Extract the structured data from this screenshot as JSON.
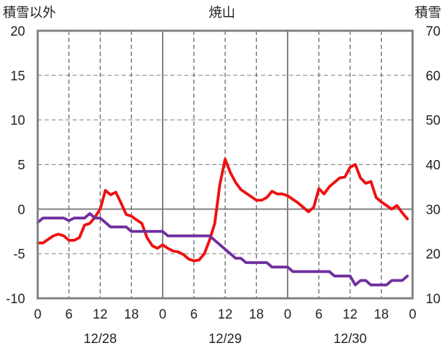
{
  "chart_data": {
    "type": "line",
    "title": "焼山",
    "ylabel_left": "積雪以外",
    "ylabel_right": "積雪",
    "ylim_left": [
      -10,
      20
    ],
    "ylim_right": [
      10,
      70
    ],
    "y_ticks_left": [
      "20",
      "15",
      "10",
      "5",
      "0",
      "-5",
      "-10"
    ],
    "y_ticks_right": [
      "70",
      "60",
      "50",
      "40",
      "30",
      "20",
      "10"
    ],
    "x_range_hours": [
      0,
      72
    ],
    "x_ticks": [
      "0",
      "6",
      "12",
      "18",
      "0",
      "6",
      "12",
      "18",
      "0",
      "6",
      "12",
      "18",
      "0"
    ],
    "date_labels": [
      "12/28",
      "12/29",
      "12/30"
    ],
    "grid": true,
    "series": [
      {
        "axis": "left",
        "color": "#ee1111",
        "points": [
          [
            0,
            -3.8
          ],
          [
            1,
            -3.8
          ],
          [
            2,
            -3.4
          ],
          [
            3,
            -3.0
          ],
          [
            4,
            -2.8
          ],
          [
            5,
            -3.0
          ],
          [
            6,
            -3.5
          ],
          [
            7,
            -3.5
          ],
          [
            8,
            -3.2
          ],
          [
            9,
            -1.8
          ],
          [
            10,
            -1.6
          ],
          [
            11,
            -0.9
          ],
          [
            12,
            0.0
          ],
          [
            13,
            2.1
          ],
          [
            14,
            1.6
          ],
          [
            15,
            1.9
          ],
          [
            16,
            0.7
          ],
          [
            17,
            -0.6
          ],
          [
            18,
            -0.8
          ],
          [
            19,
            -1.2
          ],
          [
            20,
            -1.6
          ],
          [
            21,
            -3.2
          ],
          [
            22,
            -4.1
          ],
          [
            23,
            -4.4
          ],
          [
            24,
            -4.0
          ],
          [
            25,
            -4.4
          ],
          [
            26,
            -4.7
          ],
          [
            27,
            -4.8
          ],
          [
            28,
            -5.1
          ],
          [
            29,
            -5.6
          ],
          [
            30,
            -5.8
          ],
          [
            31,
            -5.7
          ],
          [
            32,
            -5.0
          ],
          [
            33,
            -3.5
          ],
          [
            34,
            -1.6
          ],
          [
            35,
            2.8
          ],
          [
            36,
            5.6
          ],
          [
            37,
            4.1
          ],
          [
            38,
            3.0
          ],
          [
            39,
            2.2
          ],
          [
            40,
            1.8
          ],
          [
            41,
            1.4
          ],
          [
            42,
            1.0
          ],
          [
            43,
            1.0
          ],
          [
            44,
            1.3
          ],
          [
            45,
            2.0
          ],
          [
            46,
            1.7
          ],
          [
            47,
            1.7
          ],
          [
            48,
            1.5
          ],
          [
            49,
            1.1
          ],
          [
            50,
            0.7
          ],
          [
            51,
            0.2
          ],
          [
            52,
            -0.3
          ],
          [
            53,
            0.2
          ],
          [
            54,
            2.3
          ],
          [
            55,
            1.7
          ],
          [
            56,
            2.5
          ],
          [
            57,
            3.0
          ],
          [
            58,
            3.5
          ],
          [
            59,
            3.6
          ],
          [
            60,
            4.7
          ],
          [
            61,
            5.0
          ],
          [
            62,
            3.5
          ],
          [
            63,
            2.9
          ],
          [
            64,
            3.1
          ],
          [
            65,
            1.3
          ],
          [
            66,
            0.8
          ],
          [
            67,
            0.4
          ],
          [
            68,
            0.0
          ],
          [
            69,
            0.4
          ],
          [
            70,
            -0.4
          ],
          [
            71,
            -1.1
          ]
        ]
      },
      {
        "axis": "right",
        "color": "#7030a0",
        "points": [
          [
            0,
            27.0
          ],
          [
            1,
            28.0
          ],
          [
            2,
            28.0
          ],
          [
            3,
            28.0
          ],
          [
            4,
            28.0
          ],
          [
            5,
            28.0
          ],
          [
            6,
            27.4
          ],
          [
            7,
            28.0
          ],
          [
            8,
            28.0
          ],
          [
            9,
            28.0
          ],
          [
            10,
            29.0
          ],
          [
            11,
            28.0
          ],
          [
            12,
            28.0
          ],
          [
            13,
            27.0
          ],
          [
            14,
            26.0
          ],
          [
            15,
            26.0
          ],
          [
            16,
            26.0
          ],
          [
            17,
            26.0
          ],
          [
            18,
            25.0
          ],
          [
            19,
            25.0
          ],
          [
            20,
            25.0
          ],
          [
            21,
            25.0
          ],
          [
            22,
            25.0
          ],
          [
            23,
            25.0
          ],
          [
            24,
            25.0
          ],
          [
            25,
            24.0
          ],
          [
            26,
            24.0
          ],
          [
            27,
            24.0
          ],
          [
            28,
            24.0
          ],
          [
            29,
            24.0
          ],
          [
            30,
            24.0
          ],
          [
            31,
            24.0
          ],
          [
            32,
            24.0
          ],
          [
            33,
            24.0
          ],
          [
            34,
            23.0
          ],
          [
            35,
            22.0
          ],
          [
            36,
            21.0
          ],
          [
            37,
            20.0
          ],
          [
            38,
            19.0
          ],
          [
            39,
            19.0
          ],
          [
            40,
            18.0
          ],
          [
            41,
            18.0
          ],
          [
            42,
            18.0
          ],
          [
            43,
            18.0
          ],
          [
            44,
            18.0
          ],
          [
            45,
            17.0
          ],
          [
            46,
            17.0
          ],
          [
            47,
            17.0
          ],
          [
            48,
            17.0
          ],
          [
            49,
            16.0
          ],
          [
            50,
            16.0
          ],
          [
            51,
            16.0
          ],
          [
            52,
            16.0
          ],
          [
            53,
            16.0
          ],
          [
            54,
            16.0
          ],
          [
            55,
            16.0
          ],
          [
            56,
            16.0
          ],
          [
            57,
            15.0
          ],
          [
            58,
            15.0
          ],
          [
            59,
            15.0
          ],
          [
            60,
            15.0
          ],
          [
            61,
            13.0
          ],
          [
            62,
            14.0
          ],
          [
            63,
            14.0
          ],
          [
            64,
            13.0
          ],
          [
            65,
            13.0
          ],
          [
            66,
            13.0
          ],
          [
            67,
            13.0
          ],
          [
            68,
            14.0
          ],
          [
            69,
            14.0
          ],
          [
            70,
            14.0
          ],
          [
            71,
            15.0
          ]
        ]
      }
    ]
  }
}
